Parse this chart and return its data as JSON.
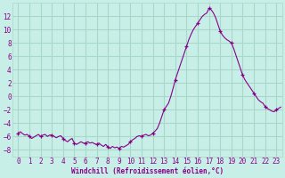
{
  "title": "",
  "xlabel": "Windchill (Refroidissement éolien,°C)",
  "ylabel": "",
  "background_color": "#c8eee8",
  "grid_color": "#a8d8c8",
  "line_color": "#880088",
  "marker_color": "#880088",
  "xlim": [
    -0.5,
    23.5
  ],
  "ylim": [
    -9,
    14
  ],
  "yticks": [
    -8,
    -6,
    -4,
    -2,
    0,
    2,
    4,
    6,
    8,
    10,
    12
  ],
  "xticks": [
    0,
    1,
    2,
    3,
    4,
    5,
    6,
    7,
    8,
    9,
    10,
    11,
    12,
    13,
    14,
    15,
    16,
    17,
    18,
    19,
    20,
    21,
    22,
    23
  ],
  "x": [
    0,
    0.2,
    0.4,
    0.6,
    0.8,
    1,
    1.2,
    1.4,
    1.6,
    1.8,
    2,
    2.2,
    2.4,
    2.6,
    2.8,
    3,
    3.2,
    3.4,
    3.6,
    3.8,
    4,
    4.2,
    4.4,
    4.6,
    4.8,
    5,
    5.2,
    5.4,
    5.6,
    5.8,
    6,
    6.2,
    6.4,
    6.6,
    6.8,
    7,
    7.2,
    7.4,
    7.6,
    7.8,
    8,
    8.2,
    8.4,
    8.6,
    8.8,
    9,
    9.2,
    9.4,
    9.6,
    9.8,
    10,
    10.2,
    10.4,
    10.6,
    10.8,
    11,
    11.2,
    11.4,
    11.6,
    11.8,
    12,
    12.2,
    12.4,
    12.6,
    12.8,
    13,
    13.2,
    13.4,
    13.6,
    13.8,
    14,
    14.2,
    14.4,
    14.6,
    14.8,
    15,
    15.2,
    15.4,
    15.6,
    15.8,
    16,
    16.2,
    16.4,
    16.6,
    16.8,
    17,
    17.2,
    17.4,
    17.6,
    17.8,
    18,
    18.2,
    18.4,
    18.6,
    18.8,
    19,
    19.2,
    19.4,
    19.6,
    19.8,
    20,
    20.2,
    20.4,
    20.6,
    20.8,
    21,
    21.2,
    21.4,
    21.6,
    21.8,
    22,
    22.2,
    22.4,
    22.6,
    22.8,
    23,
    23.2,
    23.4
  ],
  "y": [
    -5.5,
    -5.3,
    -5.6,
    -5.8,
    -5.7,
    -6.0,
    -6.3,
    -6.1,
    -5.9,
    -5.7,
    -6.0,
    -5.8,
    -5.7,
    -6.0,
    -5.8,
    -5.8,
    -6.0,
    -6.2,
    -6.0,
    -5.9,
    -6.3,
    -6.6,
    -6.8,
    -6.5,
    -6.3,
    -7.0,
    -7.2,
    -7.0,
    -6.8,
    -7.0,
    -7.0,
    -6.8,
    -7.0,
    -6.9,
    -7.1,
    -7.2,
    -7.0,
    -7.3,
    -7.5,
    -7.2,
    -7.6,
    -7.8,
    -7.5,
    -7.7,
    -7.6,
    -7.8,
    -7.5,
    -7.6,
    -7.4,
    -7.2,
    -6.8,
    -6.5,
    -6.3,
    -6.0,
    -5.9,
    -6.0,
    -5.8,
    -5.7,
    -5.9,
    -5.8,
    -5.5,
    -5.2,
    -4.8,
    -4.0,
    -3.0,
    -2.0,
    -1.5,
    -1.0,
    0.0,
    1.2,
    2.5,
    3.5,
    4.5,
    5.5,
    6.5,
    7.5,
    8.5,
    9.3,
    10.0,
    10.5,
    11.0,
    11.5,
    12.0,
    12.3,
    12.5,
    13.2,
    13.0,
    12.5,
    11.8,
    10.8,
    9.8,
    9.2,
    8.8,
    8.5,
    8.3,
    8.0,
    7.2,
    6.2,
    5.2,
    4.2,
    3.2,
    2.5,
    2.0,
    1.5,
    1.0,
    0.5,
    0.0,
    -0.5,
    -0.8,
    -1.0,
    -1.5,
    -1.8,
    -2.0,
    -2.2,
    -2.3,
    -2.0,
    -1.8,
    -1.6
  ],
  "marker_x": [
    0,
    1,
    2,
    3,
    4,
    5,
    6,
    7,
    8,
    9,
    10,
    11,
    12,
    13,
    14,
    15,
    16,
    17,
    18,
    19,
    20,
    21,
    22,
    23
  ],
  "marker_y": [
    -5.5,
    -6.0,
    -6.0,
    -5.8,
    -6.3,
    -7.0,
    -7.0,
    -7.2,
    -7.6,
    -7.8,
    -6.8,
    -6.0,
    -5.5,
    -2.0,
    2.5,
    7.5,
    11.0,
    13.2,
    9.8,
    8.0,
    3.2,
    0.5,
    -1.5,
    -2.0
  ]
}
